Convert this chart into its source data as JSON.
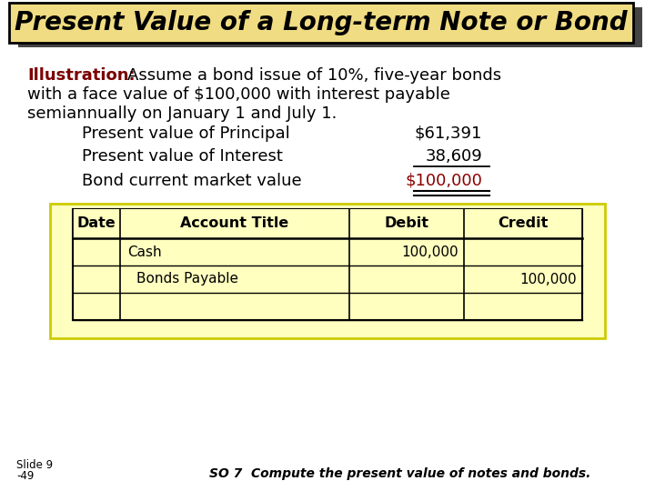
{
  "title": "Present Value of a Long-term Note or Bond",
  "title_bg": "#F0DC82",
  "title_border": "#000000",
  "title_shadow_color": "#444444",
  "bg_color": "#FFFFFF",
  "illustration_label": "Illustration:",
  "illustration_label_color": "#7B0000",
  "illustration_line1_rest": "  Assume a bond issue of 10%, five-year bonds",
  "illustration_line2": "with a face value of $100,000 with interest payable",
  "illustration_line3": "semiannually on January 1 and July 1.",
  "rows": [
    {
      "label": "Present value of Principal",
      "value": "$61,391",
      "value_color": "#000000"
    },
    {
      "label": "Present value of Interest",
      "value": "38,609",
      "value_color": "#000000"
    },
    {
      "label": "Bond current market value",
      "value": "$100,000",
      "value_color": "#8B0000"
    }
  ],
  "table_bg": "#FFFFC0",
  "table_border": "#000000",
  "table_headers": [
    "Date",
    "Account Title",
    "Debit",
    "Credit"
  ],
  "table_data_rows": [
    [
      "",
      "Cash",
      "100,000",
      ""
    ],
    [
      "",
      "Bonds Payable",
      "",
      "100,000"
    ],
    [
      "",
      "",
      "",
      ""
    ]
  ],
  "slide_label_line1": "Slide 9",
  "slide_label_line2": "-49",
  "footer_text": "SO 7  Compute the present value of notes and bonds."
}
